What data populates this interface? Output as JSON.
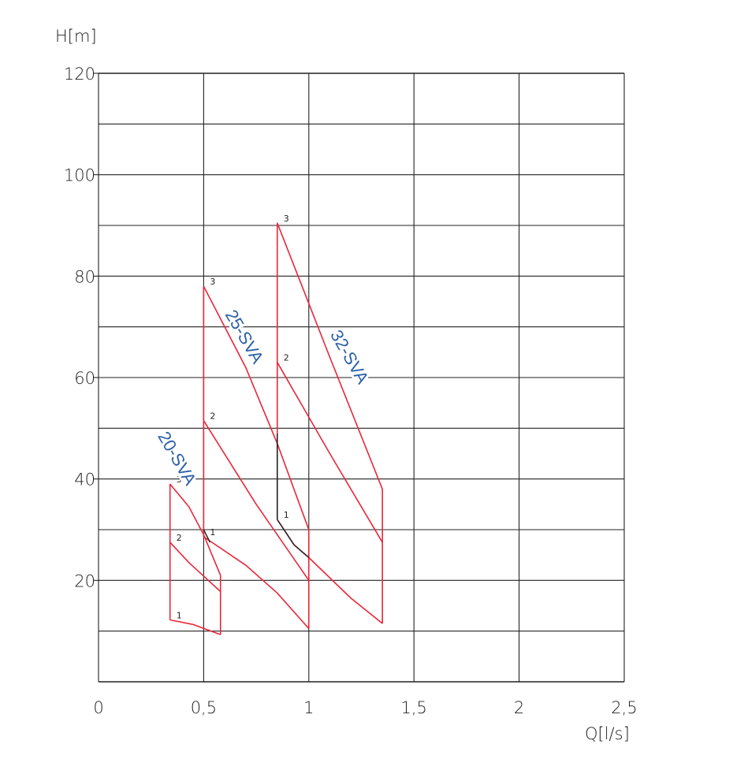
{
  "chart_data": {
    "type": "line",
    "title": "",
    "xlabel": "Q[l/s]",
    "ylabel": "H[m]",
    "xlim": [
      0,
      2.5
    ],
    "ylim": [
      0,
      120
    ],
    "x_ticks": [
      0,
      0.5,
      1,
      1.5,
      2,
      2.5
    ],
    "x_tick_labels": [
      "0",
      "0,5",
      "1",
      "1,5",
      "2",
      "2,5"
    ],
    "y_ticks": [
      20,
      40,
      60,
      80,
      100,
      120
    ],
    "y_tick_labels": [
      "20",
      "40",
      "60",
      "80",
      "100",
      "120"
    ],
    "grid": true,
    "colors": {
      "curve": "#e8273a",
      "boundary": "#222222",
      "label": "#2a5fa8",
      "grid": "#222222"
    },
    "pumps": [
      {
        "name": "20-SVA",
        "curves": [
          {
            "label": "1",
            "points": [
              [
                0.34,
                12.2
              ],
              [
                0.45,
                11.3
              ],
              [
                0.58,
                9.3
              ]
            ]
          },
          {
            "label": "2",
            "points": [
              [
                0.34,
                27.5
              ],
              [
                0.43,
                23.5
              ],
              [
                0.58,
                17.8
              ]
            ]
          },
          {
            "label": "3",
            "points": [
              [
                0.34,
                39.0
              ],
              [
                0.43,
                34.5
              ],
              [
                0.5,
                29.0
              ],
              [
                0.58,
                21.0
              ]
            ]
          }
        ],
        "boundaries": [
          {
            "color": "curve",
            "points": [
              [
                0.34,
                12.2
              ],
              [
                0.34,
                39.0
              ]
            ]
          },
          {
            "color": "curve",
            "points": [
              [
                0.58,
                9.3
              ],
              [
                0.58,
                21.0
              ]
            ]
          }
        ]
      },
      {
        "name": "25-SVA",
        "curves": [
          {
            "label": "1",
            "points": [
              [
                0.5,
                28.6
              ],
              [
                0.7,
                23.0
              ],
              [
                0.85,
                17.5
              ],
              [
                1.0,
                10.5
              ]
            ]
          },
          {
            "label": "2",
            "points": [
              [
                0.5,
                51.5
              ],
              [
                0.75,
                35.0
              ],
              [
                1.0,
                20.0
              ]
            ]
          },
          {
            "label": "3",
            "points": [
              [
                0.5,
                78.0
              ],
              [
                0.7,
                62.0
              ],
              [
                0.85,
                47.0
              ],
              [
                1.0,
                30.0
              ]
            ]
          }
        ],
        "boundaries": [
          {
            "color": "curve",
            "points": [
              [
                0.5,
                28.6
              ],
              [
                0.5,
                78.0
              ]
            ]
          },
          {
            "color": "curve",
            "points": [
              [
                1.0,
                10.5
              ],
              [
                1.0,
                30.0
              ]
            ]
          }
        ]
      },
      {
        "name": "32-SVA",
        "curves": [
          {
            "label": "1",
            "points": [
              [
                0.85,
                32.0
              ],
              [
                0.93,
                27.0
              ],
              [
                1.0,
                24.5
              ],
              [
                1.2,
                16.5
              ],
              [
                1.35,
                11.5
              ]
            ]
          },
          {
            "label": "2",
            "points": [
              [
                0.85,
                63.0
              ],
              [
                1.1,
                45.0
              ],
              [
                1.35,
                27.5
              ]
            ]
          },
          {
            "label": "3",
            "points": [
              [
                0.85,
                90.5
              ],
              [
                1.1,
                64.0
              ],
              [
                1.35,
                38.0
              ]
            ]
          }
        ],
        "boundaries": [
          {
            "color": "boundary",
            "points": [
              [
                0.85,
                32.0
              ],
              [
                0.85,
                49.0
              ]
            ]
          },
          {
            "color": "curve",
            "points": [
              [
                0.85,
                49.0
              ],
              [
                0.85,
                90.5
              ]
            ]
          },
          {
            "color": "curve",
            "points": [
              [
                1.35,
                11.5
              ],
              [
                1.35,
                38.0
              ]
            ]
          }
        ]
      }
    ],
    "black_lines": [
      [
        [
          0.5,
          30.0
        ],
        [
          0.53,
          27.5
        ]
      ],
      [
        [
          0.85,
          32.0
        ],
        [
          0.93,
          27.0
        ],
        [
          1.0,
          24.5
        ]
      ]
    ]
  }
}
